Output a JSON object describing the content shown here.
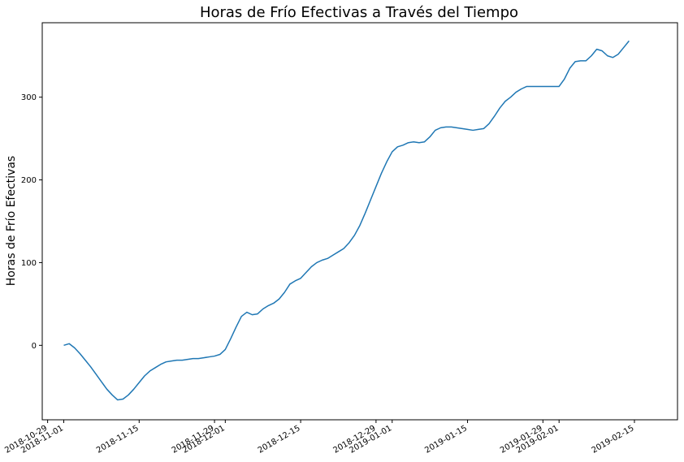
{
  "chart_data": {
    "type": "line",
    "title": "Horas de Frío Efectivas a Través del Tiempo",
    "xlabel": "",
    "ylabel": "Horas de Frío Efectivas",
    "ylim": [
      -90,
      390
    ],
    "xlim": [
      "2018-10-28",
      "2019-02-23"
    ],
    "grid": false,
    "yticks": [
      0,
      100,
      200,
      300
    ],
    "xticks": [
      {
        "date": "2018-10-29",
        "label": "2018-10-29"
      },
      {
        "date": "2018-11-01",
        "label": "2018-11-01"
      },
      {
        "date": "2018-11-15",
        "label": "2018-11-15"
      },
      {
        "date": "2018-11-29",
        "label": "2018-11-29"
      },
      {
        "date": "2018-12-01",
        "label": "2018-12-01"
      },
      {
        "date": "2018-12-15",
        "label": "2018-12-15"
      },
      {
        "date": "2018-12-29",
        "label": "2018-12-29"
      },
      {
        "date": "2019-01-01",
        "label": "2019-01-01"
      },
      {
        "date": "2019-01-15",
        "label": "2019-01-15"
      },
      {
        "date": "2019-01-29",
        "label": "2019-01-29"
      },
      {
        "date": "2019-02-01",
        "label": "2019-02-01"
      },
      {
        "date": "2019-02-15",
        "label": "2019-02-15"
      }
    ],
    "series": [
      {
        "name": "",
        "color": "#1f77b4",
        "points": [
          [
            "2018-11-01",
            0
          ],
          [
            "2018-11-02",
            2
          ],
          [
            "2018-11-03",
            -3
          ],
          [
            "2018-11-04",
            -10
          ],
          [
            "2018-11-05",
            -18
          ],
          [
            "2018-11-06",
            -26
          ],
          [
            "2018-11-07",
            -35
          ],
          [
            "2018-11-08",
            -44
          ],
          [
            "2018-11-09",
            -53
          ],
          [
            "2018-11-10",
            -60
          ],
          [
            "2018-11-11",
            -66
          ],
          [
            "2018-11-12",
            -65
          ],
          [
            "2018-11-13",
            -60
          ],
          [
            "2018-11-14",
            -53
          ],
          [
            "2018-11-15",
            -45
          ],
          [
            "2018-11-16",
            -37
          ],
          [
            "2018-11-17",
            -31
          ],
          [
            "2018-11-18",
            -27
          ],
          [
            "2018-11-19",
            -23
          ],
          [
            "2018-11-20",
            -20
          ],
          [
            "2018-11-21",
            -19
          ],
          [
            "2018-11-22",
            -18
          ],
          [
            "2018-11-23",
            -18
          ],
          [
            "2018-11-24",
            -17
          ],
          [
            "2018-11-25",
            -16
          ],
          [
            "2018-11-26",
            -16
          ],
          [
            "2018-11-27",
            -15
          ],
          [
            "2018-11-28",
            -14
          ],
          [
            "2018-11-29",
            -13
          ],
          [
            "2018-11-30",
            -11
          ],
          [
            "2018-12-01",
            -5
          ],
          [
            "2018-12-02",
            8
          ],
          [
            "2018-12-03",
            22
          ],
          [
            "2018-12-04",
            35
          ],
          [
            "2018-12-05",
            40
          ],
          [
            "2018-12-06",
            37
          ],
          [
            "2018-12-07",
            38
          ],
          [
            "2018-12-08",
            44
          ],
          [
            "2018-12-09",
            48
          ],
          [
            "2018-12-10",
            51
          ],
          [
            "2018-12-11",
            56
          ],
          [
            "2018-12-12",
            64
          ],
          [
            "2018-12-13",
            74
          ],
          [
            "2018-12-14",
            78
          ],
          [
            "2018-12-15",
            81
          ],
          [
            "2018-12-16",
            88
          ],
          [
            "2018-12-17",
            95
          ],
          [
            "2018-12-18",
            100
          ],
          [
            "2018-12-19",
            103
          ],
          [
            "2018-12-20",
            105
          ],
          [
            "2018-12-21",
            109
          ],
          [
            "2018-12-22",
            113
          ],
          [
            "2018-12-23",
            117
          ],
          [
            "2018-12-24",
            124
          ],
          [
            "2018-12-25",
            133
          ],
          [
            "2018-12-26",
            145
          ],
          [
            "2018-12-27",
            160
          ],
          [
            "2018-12-28",
            176
          ],
          [
            "2018-12-29",
            192
          ],
          [
            "2018-12-30",
            208
          ],
          [
            "2018-12-31",
            222
          ],
          [
            "2019-01-01",
            234
          ],
          [
            "2019-01-02",
            240
          ],
          [
            "2019-01-03",
            242
          ],
          [
            "2019-01-04",
            245
          ],
          [
            "2019-01-05",
            246
          ],
          [
            "2019-01-06",
            245
          ],
          [
            "2019-01-07",
            246
          ],
          [
            "2019-01-08",
            252
          ],
          [
            "2019-01-09",
            260
          ],
          [
            "2019-01-10",
            263
          ],
          [
            "2019-01-11",
            264
          ],
          [
            "2019-01-12",
            264
          ],
          [
            "2019-01-13",
            263
          ],
          [
            "2019-01-14",
            262
          ],
          [
            "2019-01-15",
            261
          ],
          [
            "2019-01-16",
            260
          ],
          [
            "2019-01-17",
            261
          ],
          [
            "2019-01-18",
            262
          ],
          [
            "2019-01-19",
            268
          ],
          [
            "2019-01-20",
            277
          ],
          [
            "2019-01-21",
            287
          ],
          [
            "2019-01-22",
            295
          ],
          [
            "2019-01-23",
            300
          ],
          [
            "2019-01-24",
            306
          ],
          [
            "2019-01-25",
            310
          ],
          [
            "2019-01-26",
            313
          ],
          [
            "2019-01-27",
            313
          ],
          [
            "2019-01-28",
            313
          ],
          [
            "2019-01-29",
            313
          ],
          [
            "2019-01-30",
            313
          ],
          [
            "2019-01-31",
            313
          ],
          [
            "2019-02-01",
            313
          ],
          [
            "2019-02-02",
            322
          ],
          [
            "2019-02-03",
            335
          ],
          [
            "2019-02-04",
            343
          ],
          [
            "2019-02-05",
            344
          ],
          [
            "2019-02-06",
            344
          ],
          [
            "2019-02-07",
            350
          ],
          [
            "2019-02-08",
            358
          ],
          [
            "2019-02-09",
            356
          ],
          [
            "2019-02-10",
            350
          ],
          [
            "2019-02-11",
            348
          ],
          [
            "2019-02-12",
            352
          ],
          [
            "2019-02-13",
            360
          ],
          [
            "2019-02-14",
            368
          ]
        ]
      }
    ]
  }
}
